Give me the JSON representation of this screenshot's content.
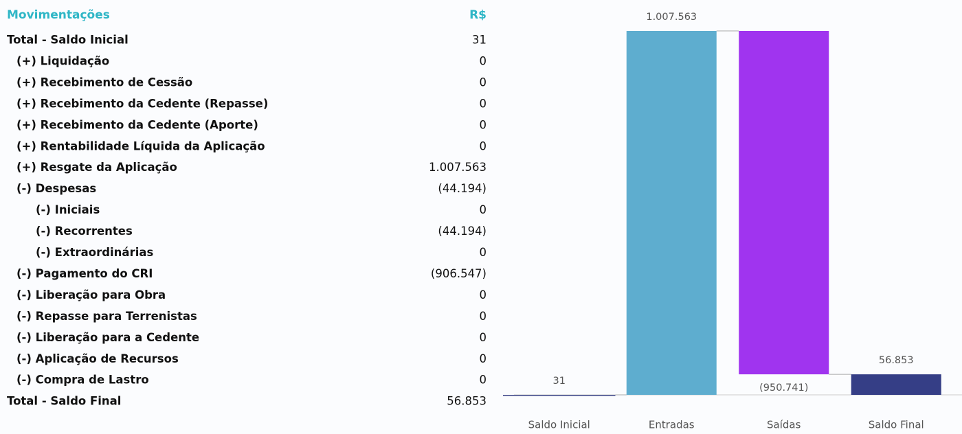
{
  "table": {
    "header": [
      "Movimentações",
      "R$"
    ],
    "indent": [
      0,
      1,
      1,
      1,
      1,
      1,
      1,
      1,
      2,
      2,
      2,
      1,
      1,
      1,
      1,
      1,
      1,
      0
    ],
    "rows": [
      [
        "Total - Saldo Inicial",
        "31"
      ],
      [
        "(+) Liquidação",
        "0"
      ],
      [
        "(+) Recebimento de Cessão",
        "0"
      ],
      [
        "(+) Recebimento da Cedente (Repasse)",
        "0"
      ],
      [
        "(+) Recebimento da Cedente (Aporte)",
        "0"
      ],
      [
        "(+) Rentabilidade Líquida da Aplicação",
        "0"
      ],
      [
        "(+) Resgate da Aplicação",
        "1.007.563"
      ],
      [
        "(-) Despesas",
        "(44.194)"
      ],
      [
        "(-) Iniciais",
        "0"
      ],
      [
        "(-) Recorrentes",
        "(44.194)"
      ],
      [
        "(-) Extraordinárias",
        "0"
      ],
      [
        "(-) Pagamento do CRI",
        "(906.547)"
      ],
      [
        "(-) Liberação para Obra",
        "0"
      ],
      [
        "(-) Repasse para Terrenistas",
        "0"
      ],
      [
        "(-) Liberação para a Cedente",
        "0"
      ],
      [
        "(-) Aplicação de Recursos",
        "0"
      ],
      [
        "(-) Compra de Lastro",
        "0"
      ],
      [
        "Total - Saldo Final",
        "56.853"
      ]
    ]
  },
  "chart_data": {
    "type": "waterfall",
    "categories": [
      "Saldo Inicial",
      "Entradas",
      "Saídas",
      "Saldo Final"
    ],
    "values": [
      31,
      1007563,
      -950741,
      56853
    ],
    "value_labels": [
      "31",
      "1.007.563",
      "(950.741)",
      "56.853"
    ],
    "measure": [
      "absolute",
      "relative",
      "relative",
      "total"
    ],
    "colors": [
      "#3b4486",
      "#5eadcf",
      "#a034ef",
      "#353e86"
    ]
  }
}
